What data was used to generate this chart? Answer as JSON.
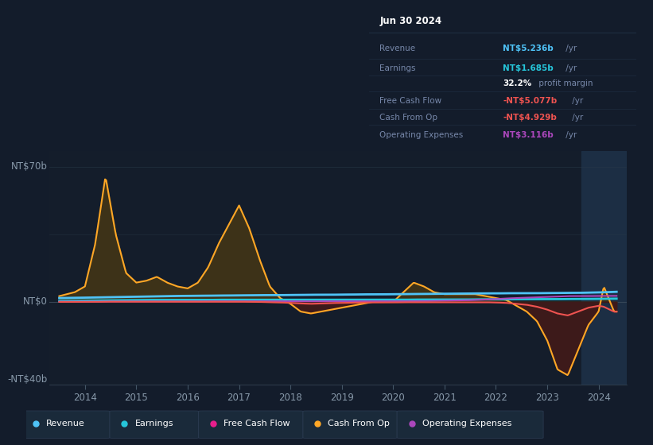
{
  "title": "Jun 30 2024",
  "bg_color": "#131c2b",
  "chart_bg": "#131c2b",
  "highlight_bg": "#1a2a3d",
  "ylabel_top": "NT$70b",
  "ylabel_zero": "NT$0",
  "ylabel_bottom": "-NT$40b",
  "ylim": [
    -43,
    78
  ],
  "colors": {
    "revenue": "#4fc3f7",
    "earnings": "#26c6da",
    "free_cash_flow": "#ef5350",
    "cash_from_op": "#ffa726",
    "operating_expenses": "#ab47bc"
  },
  "xticks": [
    2014,
    2015,
    2016,
    2017,
    2018,
    2019,
    2020,
    2021,
    2022,
    2023,
    2024
  ],
  "xlim": [
    2013.3,
    2024.55
  ],
  "highlight_start": 2023.67
}
